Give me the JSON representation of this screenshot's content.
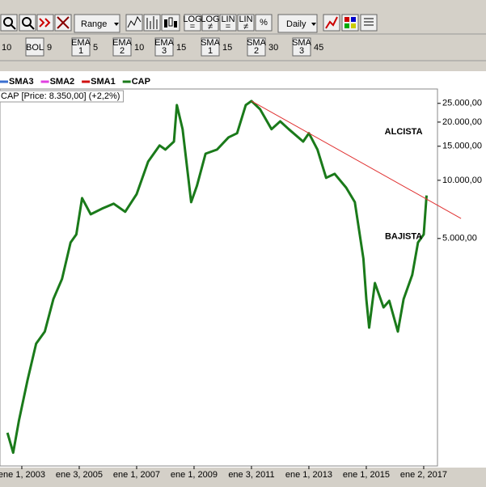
{
  "toolbar": {
    "range": "Range",
    "interval": "Daily",
    "scale_buttons": [
      {
        "top": "LOG",
        "bottom": "="
      },
      {
        "top": "LOG",
        "bottom": "≠"
      },
      {
        "top": "LIN",
        "bottom": "="
      },
      {
        "top": "LIN",
        "bottom": "≠"
      },
      {
        "top": "%"
      }
    ],
    "leading_value": "10",
    "indicators": [
      {
        "box": "BOL",
        "value": "9"
      },
      {
        "box": "EMA",
        "num": "1",
        "value": "5"
      },
      {
        "box": "EMA",
        "num": "2",
        "value": "10"
      },
      {
        "box": "EMA",
        "num": "3",
        "value": "15"
      },
      {
        "box": "SMA",
        "num": "1",
        "value": "15"
      },
      {
        "box": "SMA",
        "num": "2",
        "value": "30"
      },
      {
        "box": "SMA",
        "num": "3",
        "value": "45"
      }
    ]
  },
  "chart_data": {
    "type": "line",
    "log_scale": true,
    "grid": false,
    "legend": [
      {
        "name": "SMA3",
        "color": "#3a6fd0"
      },
      {
        "name": "SMA2",
        "color": "#e040e0"
      },
      {
        "name": "SMA1",
        "color": "#d01010"
      }
    ],
    "info": "CAP [Price: 8.350,00] (+2,2%)",
    "x": [
      2002.5,
      2002.7,
      2002.9,
      2003.2,
      2003.5,
      2003.8,
      2004.1,
      2004.4,
      2004.7,
      2004.9,
      2005.1,
      2005.4,
      2005.8,
      2006.2,
      2006.6,
      2007.0,
      2007.4,
      2007.8,
      2008.0,
      2008.3,
      2008.4,
      2008.6,
      2008.9,
      2009.1,
      2009.4,
      2009.8,
      2010.2,
      2010.5,
      2010.8,
      2011.0,
      2011.3,
      2011.7,
      2012.0,
      2012.3,
      2012.8,
      2013.0,
      2013.3,
      2013.6,
      2013.9,
      2014.3,
      2014.6,
      2014.9,
      2015.0,
      2015.1,
      2015.3,
      2015.6,
      2015.8,
      2016.1,
      2016.3,
      2016.6,
      2016.8,
      2017.0,
      2017.1
    ],
    "series": [
      {
        "name": "CAP",
        "color": "#1a7a1a",
        "values": [
          495,
          390,
          571,
          927,
          1430,
          1650,
          2430,
          3090,
          4770,
          5250,
          8090,
          6670,
          7140,
          7570,
          6870,
          8490,
          12500,
          15140,
          14420,
          15860,
          24500,
          18370,
          7710,
          9350,
          13730,
          14420,
          16680,
          17510,
          24500,
          25700,
          23320,
          18370,
          20180,
          18370,
          15860,
          17510,
          14420,
          10300,
          10800,
          9160,
          7710,
          3930,
          2430,
          1730,
          2940,
          2200,
          2380,
          1650,
          2430,
          3240,
          4770,
          5250,
          8350
        ]
      }
    ],
    "trendline": {
      "x": [
        2011.0,
        2018.3
      ],
      "values": [
        25700,
        6350
      ],
      "color": "#e03030"
    },
    "annotations": [
      {
        "text": "ALCISTA",
        "x": 2016.3,
        "y": 17800
      },
      {
        "text": "BAJISTA",
        "x": 2016.3,
        "y": 5100
      }
    ],
    "xlim": [
      2002.24,
      2017.48
    ],
    "xticks": [
      {
        "value": 2003,
        "label": "ene 1, 2003"
      },
      {
        "value": 2005,
        "label": "ene 3, 2005"
      },
      {
        "value": 2007,
        "label": "ene 1, 2007"
      },
      {
        "value": 2009,
        "label": "ene 1, 2009"
      },
      {
        "value": 2011,
        "label": "ene 3, 2011"
      },
      {
        "value": 2013,
        "label": "ene 1, 2013"
      },
      {
        "value": 2015,
        "label": "ene 1, 2015"
      },
      {
        "value": 2017,
        "label": "ene 2, 2017"
      }
    ],
    "ylim": [
      333,
      29100
    ],
    "yticks": [
      {
        "value": 25000,
        "label": "25.000,00"
      },
      {
        "value": 20000,
        "label": "20.000,00"
      },
      {
        "value": 15000,
        "label": "15.000,00"
      },
      {
        "value": 10000,
        "label": "10.000,00"
      },
      {
        "value": 5000,
        "label": "5.000,00"
      }
    ]
  }
}
